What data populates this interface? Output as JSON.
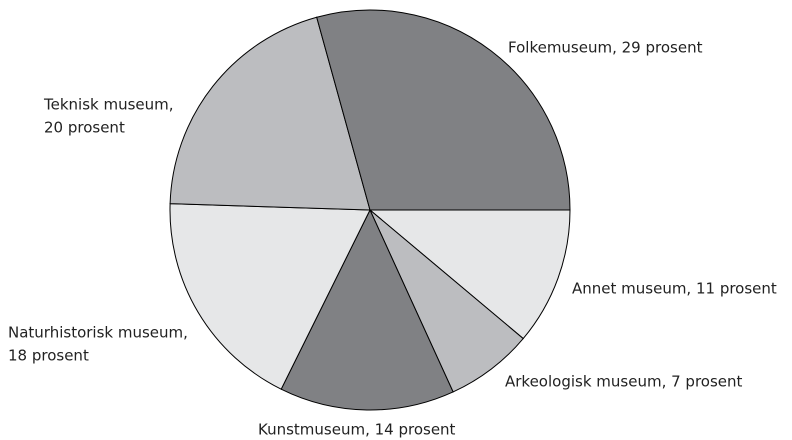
{
  "chart_data": {
    "type": "pie",
    "values": [
      11,
      7,
      14,
      18,
      20,
      29
    ],
    "value_labels": [
      [
        "Annet museum, 11 prosent"
      ],
      [
        "Arkeologisk museum, 7 prosent"
      ],
      [
        "Kunstmuseum, 14 prosent"
      ],
      [
        "Naturhistorisk museum,",
        "18 prosent"
      ],
      [
        "Teknisk museum,",
        "20 prosent"
      ],
      [
        "Folkemuseum, 29 prosent"
      ]
    ],
    "colors": [
      "#e6e7e8",
      "#bcbdc0",
      "#808184",
      "#e6e7e8",
      "#bcbdc0",
      "#808184"
    ]
  }
}
